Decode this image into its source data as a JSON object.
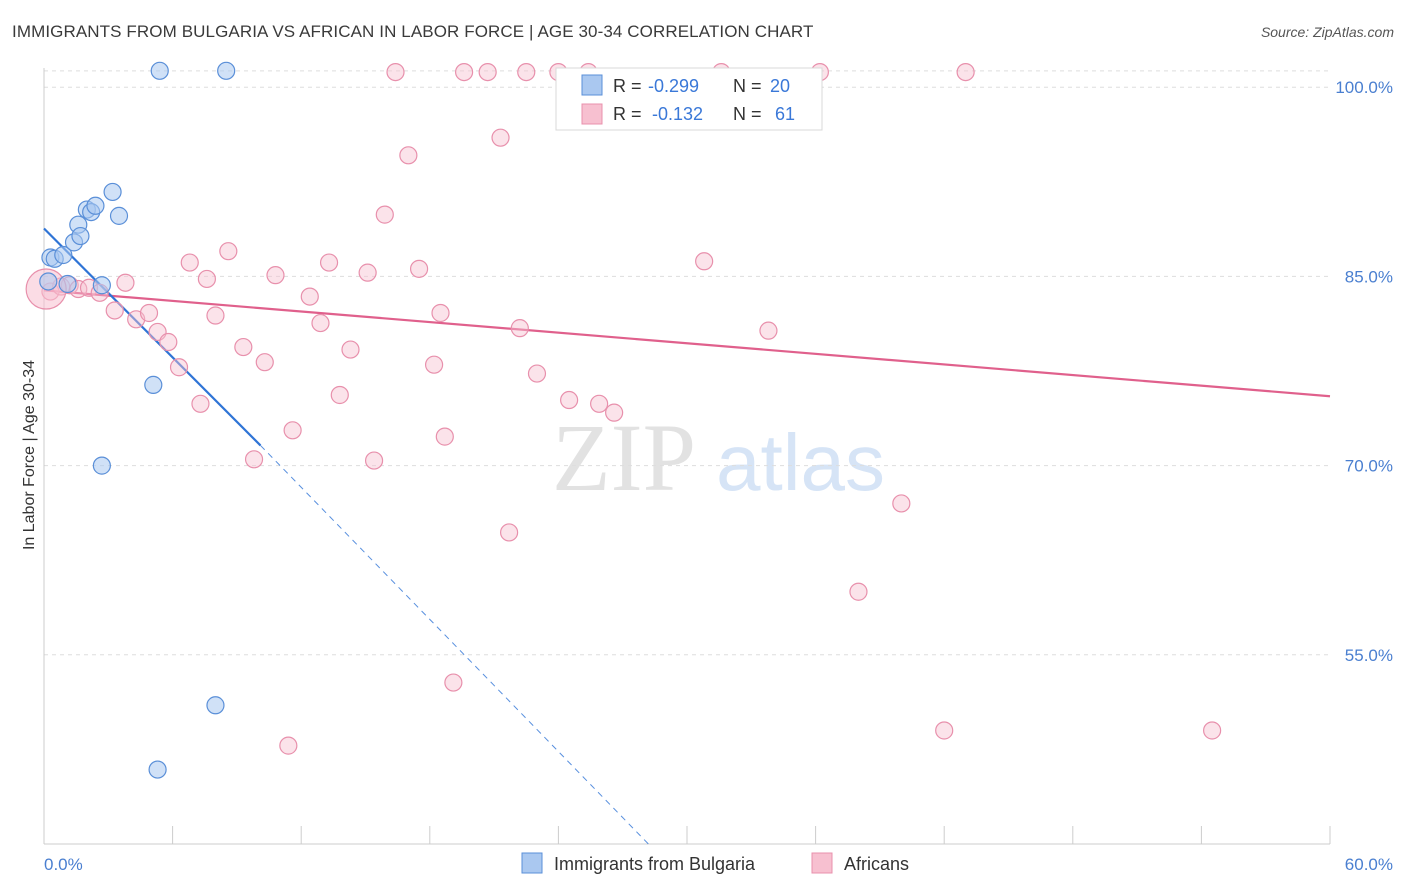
{
  "title": "IMMIGRANTS FROM BULGARIA VS AFRICAN IN LABOR FORCE | AGE 30-34 CORRELATION CHART",
  "source": "Source: ZipAtlas.com",
  "watermark": {
    "part1": "ZIP",
    "part2": "atlas"
  },
  "colors": {
    "blue_fill": "#aac8f0",
    "blue_stroke": "#5a8fd8",
    "blue_line": "#2f74d6",
    "pink_fill": "#f7c0d0",
    "pink_stroke": "#e890ac",
    "pink_line": "#e0608c",
    "grid": "#dddddd",
    "tick_text": "#4a7fd0"
  },
  "legend": {
    "rows": [
      {
        "r_label": "R =",
        "r_value": "-0.299",
        "n_label": "N =",
        "n_value": "20"
      },
      {
        "r_label": "R =",
        "r_value": "-0.132",
        "n_label": "N =",
        "n_value": "61"
      }
    ]
  },
  "bottom_legend": [
    "Immigrants from Bulgaria",
    "Africans"
  ],
  "chart_data": {
    "type": "scatter",
    "title": "IMMIGRANTS FROM BULGARIA VS AFRICAN IN LABOR FORCE | AGE 30-34 CORRELATION CHART",
    "xlabel": "",
    "ylabel": "In Labor Force | Age 30-34",
    "xlim": [
      0,
      60
    ],
    "ylim": [
      40,
      102
    ],
    "x_tick_labels": [
      "0.0%",
      "60.0%"
    ],
    "y_ticks": [
      100,
      85,
      70,
      55
    ],
    "y_tick_labels": [
      "100.0%",
      "85.0%",
      "70.0%",
      "55.0%"
    ],
    "series": [
      {
        "name": "Immigrants from Bulgaria",
        "r": -0.299,
        "n": 20,
        "points": [
          [
            0.2,
            84.6
          ],
          [
            0.3,
            86.5
          ],
          [
            0.5,
            86.4
          ],
          [
            0.9,
            86.7
          ],
          [
            1.1,
            84.4
          ],
          [
            1.4,
            87.7
          ],
          [
            1.6,
            89.1
          ],
          [
            1.7,
            88.2
          ],
          [
            2.0,
            90.3
          ],
          [
            2.2,
            90.1
          ],
          [
            2.4,
            90.6
          ],
          [
            2.7,
            84.3
          ],
          [
            3.2,
            91.7
          ],
          [
            3.5,
            89.8
          ],
          [
            5.1,
            76.4
          ],
          [
            2.7,
            70.0
          ],
          [
            5.4,
            101.3
          ],
          [
            8.5,
            101.3
          ],
          [
            8.0,
            51.0
          ],
          [
            5.3,
            45.9
          ]
        ],
        "trend": {
          "x0": 0.0,
          "y0": 88.8,
          "x1": 10.1,
          "y1": 71.6,
          "dash_x1": 28.2,
          "dash_y1": 40.0
        }
      },
      {
        "name": "Africans",
        "r": -0.132,
        "n": 61,
        "points": [
          [
            0.3,
            83.8
          ],
          [
            0.8,
            84.2
          ],
          [
            1.2,
            84.3
          ],
          [
            1.6,
            84.0
          ],
          [
            2.1,
            84.1
          ],
          [
            2.6,
            83.7
          ],
          [
            3.3,
            82.3
          ],
          [
            3.8,
            84.5
          ],
          [
            4.3,
            81.6
          ],
          [
            4.9,
            82.1
          ],
          [
            5.3,
            80.6
          ],
          [
            5.8,
            79.8
          ],
          [
            6.3,
            77.8
          ],
          [
            6.8,
            86.1
          ],
          [
            7.3,
            74.9
          ],
          [
            7.6,
            84.8
          ],
          [
            8.0,
            81.9
          ],
          [
            8.6,
            87.0
          ],
          [
            9.3,
            79.4
          ],
          [
            9.8,
            70.5
          ],
          [
            10.3,
            78.2
          ],
          [
            10.8,
            85.1
          ],
          [
            11.6,
            72.8
          ],
          [
            12.4,
            83.4
          ],
          [
            12.9,
            81.3
          ],
          [
            13.3,
            86.1
          ],
          [
            13.8,
            75.6
          ],
          [
            14.3,
            79.2
          ],
          [
            15.1,
            85.3
          ],
          [
            15.4,
            70.4
          ],
          [
            15.9,
            89.9
          ],
          [
            16.4,
            101.2
          ],
          [
            17.0,
            94.6
          ],
          [
            17.5,
            85.6
          ],
          [
            18.2,
            78.0
          ],
          [
            18.5,
            82.1
          ],
          [
            18.7,
            72.3
          ],
          [
            19.1,
            52.8
          ],
          [
            19.6,
            101.2
          ],
          [
            20.7,
            101.2
          ],
          [
            21.3,
            96.0
          ],
          [
            21.7,
            64.7
          ],
          [
            22.2,
            80.9
          ],
          [
            22.5,
            101.2
          ],
          [
            23.0,
            77.3
          ],
          [
            24.0,
            101.2
          ],
          [
            24.5,
            75.2
          ],
          [
            25.4,
            101.2
          ],
          [
            25.9,
            74.9
          ],
          [
            26.6,
            74.2
          ],
          [
            30.8,
            86.2
          ],
          [
            31.6,
            101.2
          ],
          [
            33.8,
            80.7
          ],
          [
            36.2,
            101.2
          ],
          [
            38.0,
            60.0
          ],
          [
            40.0,
            67.0
          ],
          [
            42.0,
            49.0
          ],
          [
            43.0,
            101.2
          ],
          [
            54.5,
            49.0
          ],
          [
            11.4,
            47.8
          ],
          [
            0.1,
            84.0
          ]
        ],
        "trend": {
          "x0": 0.0,
          "y0": 83.9,
          "x1": 60.0,
          "y1": 75.5
        }
      }
    ]
  }
}
